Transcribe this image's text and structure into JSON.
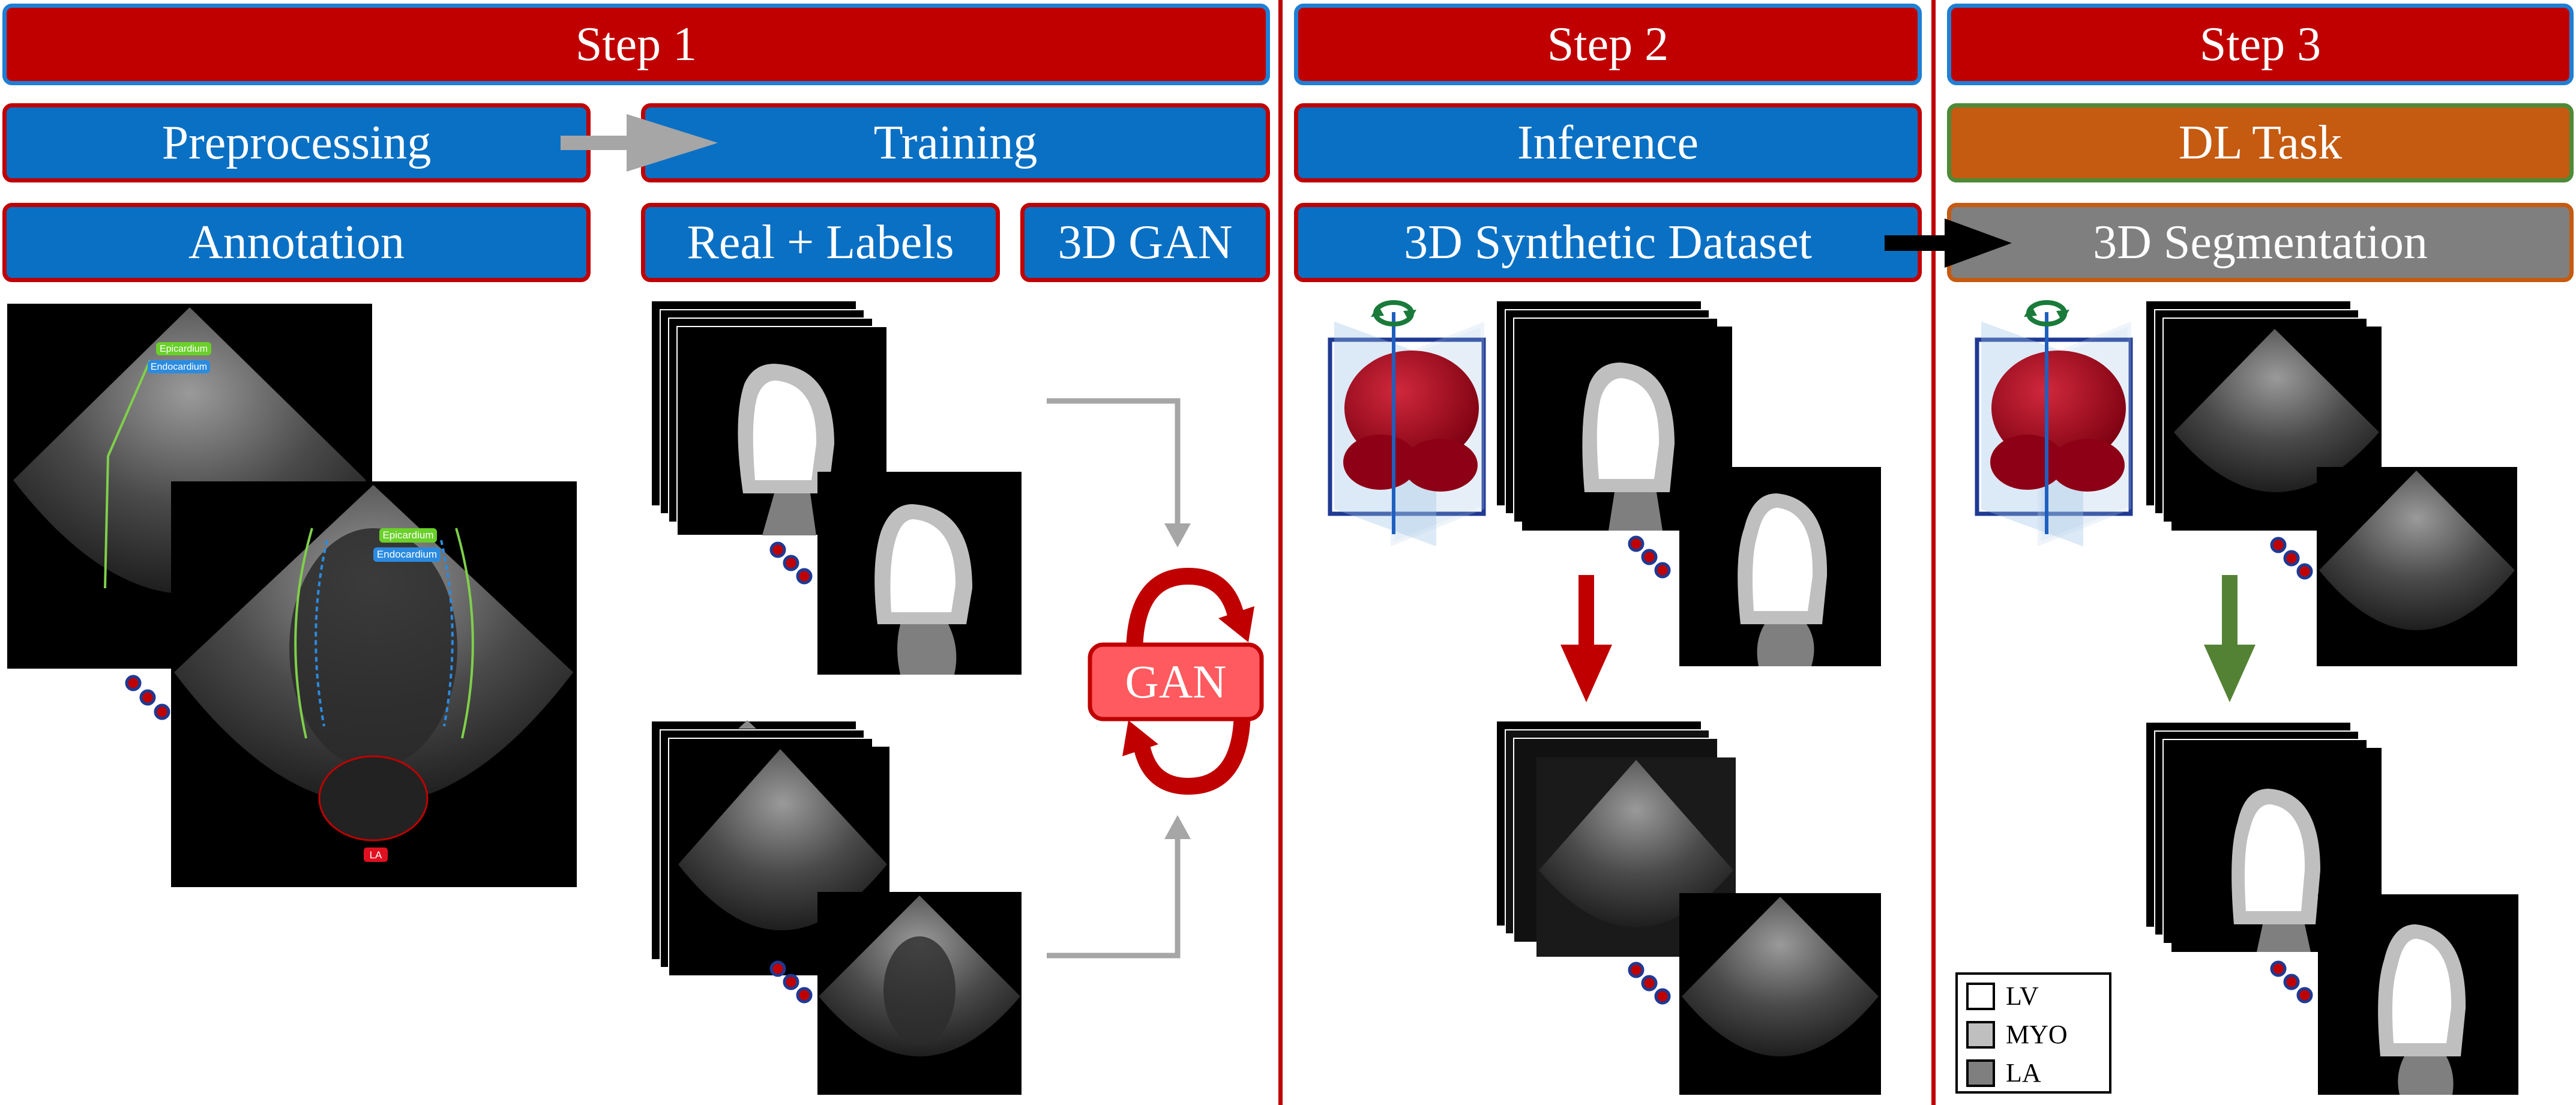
{
  "steps": [
    {
      "label": "Step 1"
    },
    {
      "label": "Step 2"
    },
    {
      "label": "Step 3"
    }
  ],
  "step1": {
    "preprocessing": "Preprocessing",
    "training": "Training",
    "annotation": "Annotation",
    "real_labels": "Real + Labels",
    "gan3d": "3D GAN",
    "gan_label": "GAN",
    "annot_tags": {
      "epicardium": "Epicardium",
      "endocardium": "Endocardium",
      "la": "LA"
    }
  },
  "step2": {
    "inference": "Inference",
    "synthetic": "3D Synthetic Dataset"
  },
  "step3": {
    "dl_task": "DL Task",
    "segmentation": "3D Segmentation"
  },
  "legend": [
    {
      "label": "LV",
      "color": "#ffffff"
    },
    {
      "label": "MYO",
      "color": "#bfbfbf"
    },
    {
      "label": "LA",
      "color": "#7f7f7f"
    }
  ],
  "colors": {
    "header_red": "#c00000",
    "panel_blue": "#0a70c4",
    "task_orange": "#c55a11",
    "seg_gray": "#7f7f7f",
    "arrow_red": "#c00000",
    "arrow_green": "#548235",
    "arrow_gray": "#a6a6a6"
  },
  "icons": [
    "rotate-icon",
    "heart-3d-icon",
    "ellipsis-dots-icon"
  ]
}
